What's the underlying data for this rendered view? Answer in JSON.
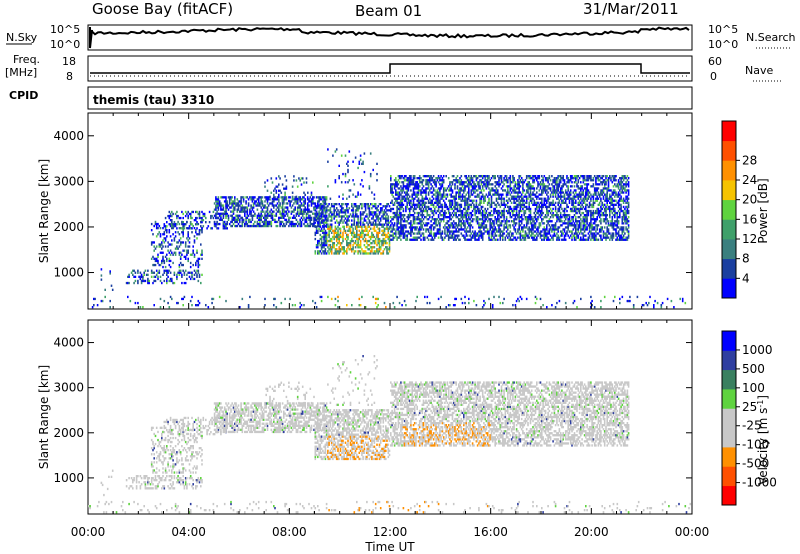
{
  "header": {
    "station": "Goose Bay (fitACF)",
    "beam": "Beam 01",
    "date": "31/Mar/2011"
  },
  "noise_panel": {
    "left_label": "N.Sky",
    "right_label": "N.Search",
    "left_ticks": [
      "10^5",
      "10^0"
    ],
    "right_ticks": [
      "10^5",
      "10^0"
    ]
  },
  "freq_panel": {
    "left_label_1": "Freq.",
    "left_label_2": "[MHz]",
    "left_ticks": [
      "18",
      "8"
    ],
    "right_label": "Nave",
    "right_ticks": [
      "60",
      "0"
    ],
    "cpid_label": "CPID",
    "cpid_text": "themis (tau) 3310"
  },
  "colors": {
    "power_scale": [
      "#0000ff",
      "#1a3fa0",
      "#3a7f7f",
      "#3fa06a",
      "#5fd33f",
      "#f5c300",
      "#ff9000",
      "#ff5000",
      "#ff0000"
    ],
    "velocity_scale": [
      "#0000ff",
      "#2f3fa0",
      "#3a8060",
      "#5fd33f",
      "#c8c8c8",
      "#c8c8c8",
      "#ff9000",
      "#ff5000",
      "#ff0000"
    ]
  },
  "chart_data": [
    {
      "type": "heatmap",
      "name": "power",
      "xlabel": "",
      "ylabel": "Slant Range [km]",
      "y_ticks": [
        "1000",
        "2000",
        "3000",
        "4000"
      ],
      "colorbar_label": "Power [dB]",
      "colorbar_ticks": [
        "4",
        "8",
        "12",
        "16",
        "20",
        "24",
        "28"
      ]
    },
    {
      "type": "heatmap",
      "name": "velocity",
      "xlabel": "Time UT",
      "ylabel": "Slant Range [km]",
      "y_ticks": [
        "1000",
        "2000",
        "3000",
        "4000"
      ],
      "x_ticks": [
        "00:00",
        "04:00",
        "08:00",
        "12:00",
        "16:00",
        "20:00",
        "00:00"
      ],
      "colorbar_label": "Velocity [m s",
      "colorbar_sup": "-1",
      "colorbar_ticks": [
        "1000",
        "500",
        "100",
        "25",
        "-25",
        "-100",
        "-500",
        "-1000"
      ]
    }
  ]
}
